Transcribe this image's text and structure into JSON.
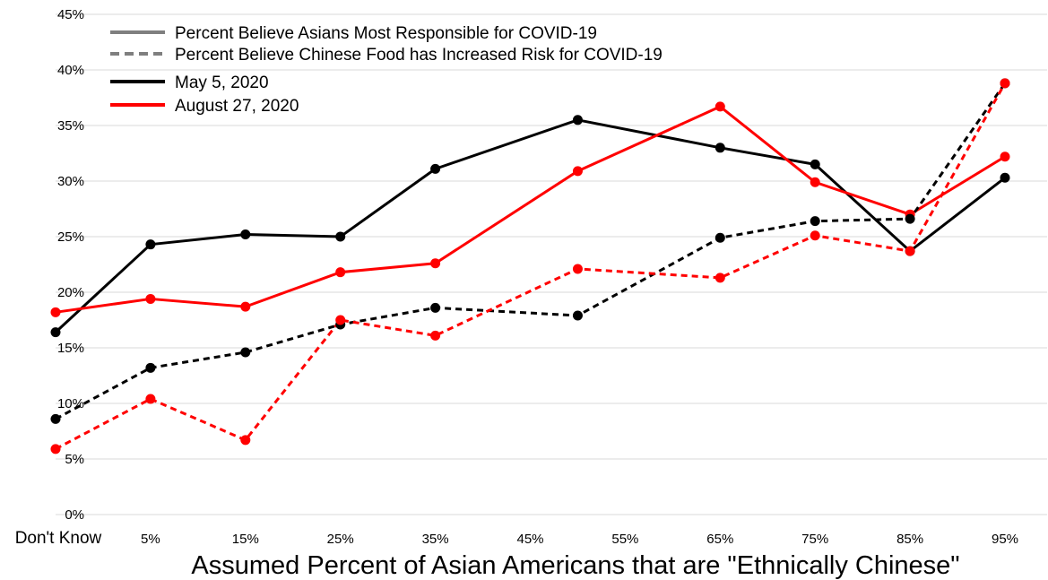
{
  "chart_data": {
    "type": "line",
    "title": "",
    "xlabel": "Assumed Percent of Asian Americans that are \"Ethnically Chinese\"",
    "ylabel": "",
    "ylim": [
      0,
      45
    ],
    "y_ticks": [
      "0%",
      "5%",
      "10%",
      "15%",
      "20%",
      "25%",
      "30%",
      "35%",
      "40%",
      "45%"
    ],
    "categories": [
      "Don't Know",
      "5%",
      "15%",
      "25%",
      "35%",
      "45%",
      "55%",
      "65%",
      "75%",
      "85%",
      "95%"
    ],
    "grid": "horizontal",
    "legend_position": "top-left",
    "legend": [
      {
        "label": "Percent Believe Asians Most Responsible for COVID-19",
        "color": "#7f7f7f",
        "style": "solid"
      },
      {
        "label": "Percent Believe Chinese Food has Increased Risk for COVID-19",
        "color": "#7f7f7f",
        "style": "dashed"
      },
      {
        "label": "May 5, 2020",
        "color": "#000000",
        "style": "solid"
      },
      {
        "label": "August 27, 2020",
        "color": "#ff0000",
        "style": "solid"
      }
    ],
    "series": [
      {
        "measure": "Percent Believe Asians Most Responsible for COVID-19",
        "date": "May 5, 2020",
        "color": "#000000",
        "dashed": false,
        "points": [
          [
            0,
            16.4
          ],
          [
            1,
            24.3
          ],
          [
            2,
            25.2
          ],
          [
            3,
            25.0
          ],
          [
            4,
            31.1
          ],
          [
            5.5,
            35.5
          ],
          [
            7,
            33.0
          ],
          [
            8,
            31.5
          ],
          [
            9,
            23.7
          ],
          [
            10,
            30.3
          ]
        ]
      },
      {
        "measure": "Percent Believe Asians Most Responsible for COVID-19",
        "date": "August 27, 2020",
        "color": "#ff0000",
        "dashed": false,
        "points": [
          [
            0,
            18.2
          ],
          [
            1,
            19.4
          ],
          [
            2,
            18.7
          ],
          [
            3,
            21.8
          ],
          [
            4,
            22.6
          ],
          [
            5.5,
            30.9
          ],
          [
            7,
            36.7
          ],
          [
            8,
            29.9
          ],
          [
            9,
            27.0
          ],
          [
            10,
            32.2
          ]
        ]
      },
      {
        "measure": "Percent Believe Chinese Food has Increased Risk for COVID-19",
        "date": "May 5, 2020",
        "color": "#000000",
        "dashed": true,
        "points": [
          [
            0,
            8.6
          ],
          [
            1,
            13.2
          ],
          [
            2,
            14.6
          ],
          [
            3,
            17.1
          ],
          [
            4,
            18.6
          ],
          [
            5.5,
            17.9
          ],
          [
            7,
            24.9
          ],
          [
            8,
            26.4
          ],
          [
            9,
            26.6
          ],
          [
            10,
            38.8
          ]
        ]
      },
      {
        "measure": "Percent Believe Chinese Food has Increased Risk for COVID-19",
        "date": "August 27, 2020",
        "color": "#ff0000",
        "dashed": true,
        "points": [
          [
            0,
            5.9
          ],
          [
            1,
            10.4
          ],
          [
            2,
            6.7
          ],
          [
            3,
            17.5
          ],
          [
            4,
            16.1
          ],
          [
            5.5,
            22.1
          ],
          [
            7,
            21.3
          ],
          [
            8,
            25.1
          ],
          [
            9,
            23.7
          ],
          [
            10,
            38.8
          ]
        ]
      }
    ]
  }
}
